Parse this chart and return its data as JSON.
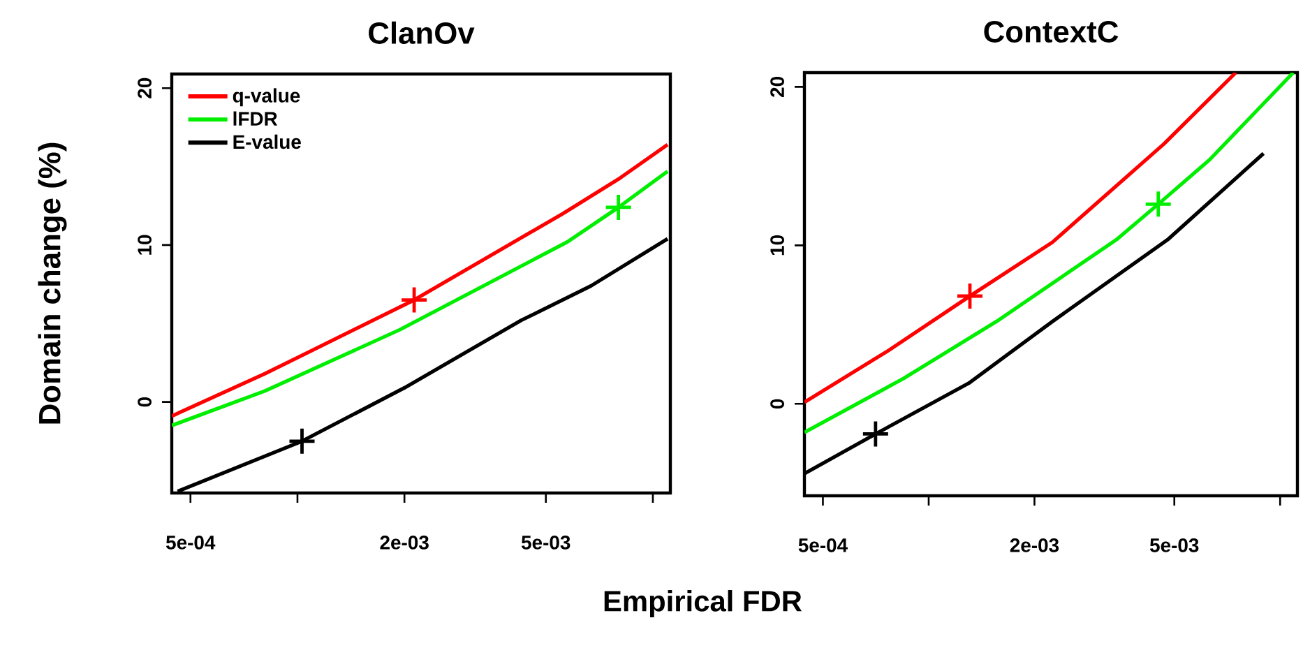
{
  "chart_data": [
    {
      "type": "line",
      "title": "ClanOv",
      "xlabel": "Empirical FDR",
      "ylabel": "Domain change (%)",
      "log": "x",
      "legend": "top left",
      "xlim": [
        0.000443,
        0.0112
      ],
      "ylim": [
        -5.8,
        20.9
      ],
      "xticks": [
        {
          "value": 0.0005,
          "label": "5e-04"
        },
        {
          "value": 0.001,
          "label": null
        },
        {
          "value": 0.002,
          "label": "2e-03"
        },
        {
          "value": 0.005,
          "label": "5e-03"
        },
        {
          "value": 0.01,
          "label": null
        }
      ],
      "yticks": [
        0,
        10,
        20
      ],
      "series": [
        {
          "name": "q-value",
          "color": "#ff0000",
          "x": [
            0.000443,
            0.00081,
            0.00213,
            0.00558,
            0.008,
            0.011
          ],
          "values": [
            -0.9,
            1.8,
            6.5,
            12.0,
            14.2,
            16.4
          ]
        },
        {
          "name": "lFDR",
          "color": "#00ee00",
          "x": [
            0.000443,
            0.00081,
            0.00194,
            0.00575,
            0.008,
            0.011
          ],
          "values": [
            -1.5,
            0.7,
            4.6,
            10.2,
            12.4,
            14.7
          ]
        },
        {
          "name": "E-value",
          "color": "#000000",
          "x": [
            0.00046,
            0.00103,
            0.002,
            0.00426,
            0.0067,
            0.011
          ],
          "values": [
            -5.7,
            -2.5,
            0.9,
            5.2,
            7.4,
            10.4
          ]
        },
        {
          "color": "#ff0000",
          "type": "scatter",
          "marker": "cross",
          "x": [
            0.00213
          ],
          "values": [
            6.5
          ]
        },
        {
          "color": "#00ee00",
          "type": "scatter",
          "marker": "cross",
          "x": [
            0.008
          ],
          "values": [
            12.4
          ]
        },
        {
          "color": "#000000",
          "type": "scatter",
          "marker": "cross",
          "x": [
            0.00103
          ],
          "values": [
            -2.5
          ]
        }
      ]
    },
    {
      "type": "line",
      "title": "ContextC",
      "log": "x",
      "xlim": [
        0.000443,
        0.0112
      ],
      "ylim": [
        -5.8,
        20.9
      ],
      "xticks": [
        {
          "value": 0.0005,
          "label": "5e-04"
        },
        {
          "value": 0.001,
          "label": null
        },
        {
          "value": 0.002,
          "label": "2e-03"
        },
        {
          "value": 0.005,
          "label": "5e-03"
        },
        {
          "value": 0.01,
          "label": null
        }
      ],
      "yticks": [
        0,
        10,
        20
      ],
      "series": [
        {
          "color": "#ff0000",
          "x": [
            0.000443,
            0.000773,
            0.00131,
            0.00225,
            0.00467,
            0.00748
          ],
          "values": [
            0.1,
            3.4,
            6.8,
            10.2,
            16.4,
            20.9
          ]
        },
        {
          "color": "#00ee00",
          "x": [
            0.000443,
            0.000848,
            0.00156,
            0.00344,
            0.0045,
            0.0063,
            0.0109
          ],
          "values": [
            -1.8,
            1.6,
            5.2,
            10.4,
            12.6,
            15.4,
            20.9
          ]
        },
        {
          "color": "#000000",
          "x": [
            0.000443,
            0.000706,
            0.0013,
            0.00225,
            0.00481,
            0.00897
          ],
          "values": [
            -4.4,
            -1.9,
            1.3,
            5.2,
            10.4,
            15.8
          ]
        },
        {
          "color": "#ff0000",
          "type": "scatter",
          "marker": "cross",
          "x": [
            0.00131
          ],
          "values": [
            6.8
          ]
        },
        {
          "color": "#00ee00",
          "type": "scatter",
          "marker": "cross",
          "x": [
            0.0045
          ],
          "values": [
            12.6
          ]
        },
        {
          "color": "#000000",
          "type": "scatter",
          "marker": "cross",
          "x": [
            0.000706
          ],
          "values": [
            -1.9
          ]
        }
      ]
    }
  ]
}
